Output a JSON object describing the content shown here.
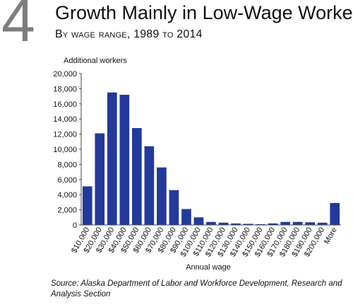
{
  "figure_number": "4",
  "chart_data": {
    "type": "bar",
    "title": "Growth Mainly in Low-Wage Workers",
    "subtitle": "By wage range, 1989 to 2014",
    "ylabel": "Additional workers",
    "xlabel": "Annual wage",
    "ylim": [
      0,
      20000
    ],
    "yticks": [
      "0",
      "2,000",
      "4,000",
      "6,000",
      "8,000",
      "10,000",
      "12,000",
      "14,000",
      "16,000",
      "18,000",
      "20,000"
    ],
    "categories": [
      "$10,000",
      "$20,000",
      "$30,000",
      "$40,000",
      "$50,000",
      "$60,000",
      "$70,000",
      "$80,000",
      "$90,000",
      "$100,000",
      "$110,000",
      "$120,000",
      "$130,000",
      "$140,000",
      "$150,000",
      "$160,000",
      "$170,000",
      "$180,000",
      "$190,000",
      "$200,000",
      "More"
    ],
    "values": [
      5100,
      12100,
      17500,
      17200,
      12800,
      10400,
      7600,
      4600,
      2100,
      1000,
      400,
      300,
      200,
      150,
      100,
      200,
      400,
      400,
      350,
      300,
      2900
    ],
    "bar_color": "#23399b",
    "grid": false,
    "legend": "none"
  },
  "source": "Source: Alaska Department of Labor and Workforce Development, Research and Analysis Section"
}
